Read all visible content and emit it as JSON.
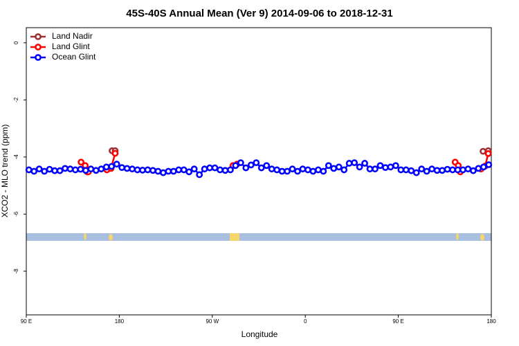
{
  "chart_data": {
    "type": "line",
    "title": "45S-40S Annual Mean (Ver 9)   2014-09-06 to 2018-12-31",
    "x_label": "Longitude",
    "y_label": "XCO2 - MLO trend (ppm)",
    "xlim": [
      90,
      540
    ],
    "ylim": [
      -9.53,
      0.53
    ],
    "xticks": [
      {
        "value": 90,
        "label": "90 E"
      },
      {
        "value": 180,
        "label": "180"
      },
      {
        "value": 270,
        "label": "90 W"
      },
      {
        "value": 360,
        "label": "0"
      },
      {
        "value": 450,
        "label": "90 E"
      },
      {
        "value": 540,
        "label": "180"
      }
    ],
    "yticks": [
      0,
      -2,
      -4,
      -6,
      -8
    ],
    "legend": "top-left",
    "series": [
      {
        "name": "Land Nadir",
        "color": "#a03030",
        "x": [
          149,
          160,
          173,
          176,
          520,
          532,
          537
        ],
        "values": [
          -4.52,
          null,
          -3.78,
          -3.78,
          null,
          -3.8,
          -3.78
        ]
      },
      {
        "name": "Land Glint",
        "color": "#ff0000",
        "x": [
          143,
          147,
          150,
          160,
          168,
          172,
          176,
          280,
          290,
          294,
          400,
          505,
          508,
          510,
          520,
          530,
          534,
          537
        ],
        "values": [
          -4.18,
          -4.3,
          -4.52,
          null,
          -4.45,
          -4.4,
          -3.87,
          null,
          -4.3,
          -4.25,
          null,
          -4.18,
          -4.3,
          -4.52,
          null,
          -4.42,
          -4.32,
          -3.88
        ]
      },
      {
        "name": "Ocean Glint",
        "color": "#0000ff",
        "x": [
          92.5,
          97.5,
          102.5,
          107.5,
          112.5,
          117.5,
          122.5,
          127.5,
          132.5,
          137.5,
          142.5,
          147.5,
          152.5,
          157.5,
          162.5,
          167.5,
          172.5,
          177.5,
          182.5,
          187.5,
          192.5,
          197.5,
          202.5,
          207.5,
          212.5,
          217.5,
          222.5,
          227.5,
          232.5,
          237.5,
          242.5,
          247.5,
          252.5,
          257.5,
          262.5,
          267.5,
          272.5,
          277.5,
          282.5,
          287.5,
          292.5,
          297.5,
          302.5,
          307.5,
          312.5,
          317.5,
          322.5,
          327.5,
          332.5,
          337.5,
          342.5,
          347.5,
          352.5,
          357.5,
          362.5,
          367.5,
          372.5,
          377.5,
          382.5,
          387.5,
          392.5,
          397.5,
          402.5,
          407.5,
          412.5,
          417.5,
          422.5,
          427.5,
          432.5,
          437.5,
          442.5,
          447.5,
          452.5,
          457.5,
          462.5,
          467.5,
          472.5,
          477.5,
          482.5,
          487.5,
          492.5,
          497.5,
          502.5,
          507.5,
          512.5,
          517.5,
          522.5,
          527.5,
          532.5,
          537.5
        ],
        "values": [
          -4.45,
          -4.5,
          -4.42,
          -4.5,
          -4.43,
          -4.48,
          -4.48,
          -4.4,
          -4.42,
          -4.45,
          -4.43,
          -4.47,
          -4.42,
          -4.47,
          -4.42,
          -4.35,
          -4.33,
          -4.25,
          -4.37,
          -4.4,
          -4.42,
          -4.45,
          -4.46,
          -4.45,
          -4.47,
          -4.5,
          -4.55,
          -4.5,
          -4.5,
          -4.45,
          -4.45,
          -4.52,
          -4.42,
          -4.62,
          -4.42,
          -4.38,
          -4.38,
          -4.45,
          -4.47,
          -4.45,
          -4.3,
          -4.2,
          -4.38,
          -4.28,
          -4.2,
          -4.38,
          -4.3,
          -4.42,
          -4.45,
          -4.5,
          -4.5,
          -4.42,
          -4.5,
          -4.42,
          -4.45,
          -4.5,
          -4.45,
          -4.5,
          -4.3,
          -4.4,
          -4.35,
          -4.45,
          -4.22,
          -4.2,
          -4.35,
          -4.22,
          -4.42,
          -4.42,
          -4.3,
          -4.37,
          -4.35,
          -4.3,
          -4.45,
          -4.45,
          -4.48,
          -4.55,
          -4.42,
          -4.5,
          -4.42,
          -4.47,
          -4.47,
          -4.43,
          -4.45,
          -4.45,
          -4.45,
          -4.42,
          -4.48,
          -4.4,
          -4.35,
          -4.27
        ]
      }
    ]
  }
}
